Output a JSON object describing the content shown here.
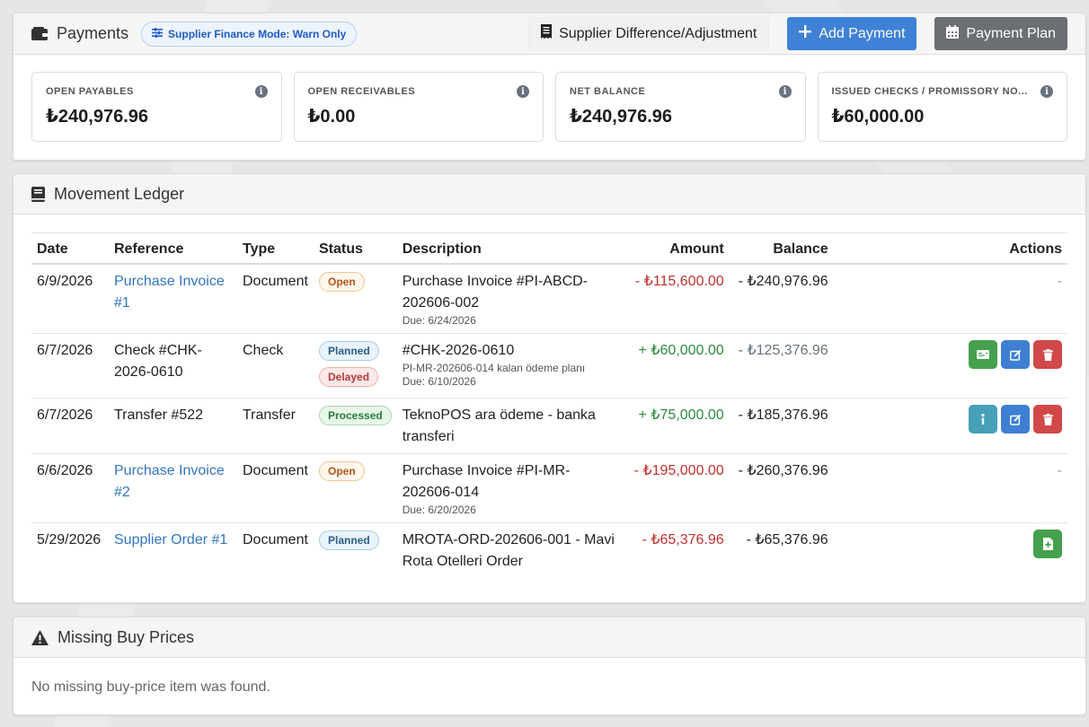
{
  "payments": {
    "title": "Payments",
    "mode_pill": "Supplier Finance Mode: Warn Only",
    "diff_button": "Supplier Difference/Adjustment",
    "add_button": "Add Payment",
    "plan_button": "Payment Plan",
    "stats": [
      {
        "label": "OPEN PAYABLES",
        "value": "₺240,976.96"
      },
      {
        "label": "OPEN RECEIVABLES",
        "value": "₺0.00"
      },
      {
        "label": "NET BALANCE",
        "value": "₺240,976.96"
      },
      {
        "label": "ISSUED CHECKS / PROMISSORY NO...",
        "value": "₺60,000.00"
      }
    ],
    "info_glyph": "i"
  },
  "ledger": {
    "title": "Movement Ledger",
    "columns": {
      "date": "Date",
      "reference": "Reference",
      "type": "Type",
      "status": "Status",
      "description": "Description",
      "amount": "Amount",
      "balance": "Balance",
      "actions": "Actions"
    },
    "rows": [
      {
        "date": "6/9/2026",
        "reference": "Purchase Invoice #1",
        "type": "Document",
        "status": "Open",
        "description": "Purchase Invoice #PI-ABCD-202606-002",
        "note": "",
        "due": "Due: 6/24/2026",
        "amount": "- ₺115,600.00",
        "balance": "- ₺240,976.96",
        "actions_text": "-"
      },
      {
        "date": "6/7/2026",
        "reference": "Check #CHK-2026-0610",
        "type": "Check",
        "status": "Planned",
        "status2": "Delayed",
        "description": "#CHK-2026-0610",
        "note": "PI-MR-202606-014 kalan ödeme planı",
        "due": "Due: 6/10/2026",
        "amount": "+ ₺60,000.00",
        "balance": "- ₺125,376.96"
      },
      {
        "date": "6/7/2026",
        "reference": "Transfer #522",
        "type": "Transfer",
        "status": "Processed",
        "description": "TeknoPOS ara ödeme - banka transferi",
        "amount": "+ ₺75,000.00",
        "balance": "- ₺185,376.96"
      },
      {
        "date": "6/6/2026",
        "reference": "Purchase Invoice #2",
        "type": "Document",
        "status": "Open",
        "description": "Purchase Invoice #PI-MR-202606-014",
        "due": "Due: 6/20/2026",
        "amount": "- ₺195,000.00",
        "balance": "- ₺260,376.96",
        "actions_text": "-"
      },
      {
        "date": "5/29/2026",
        "reference": "Supplier Order #1",
        "type": "Document",
        "status": "Planned",
        "description": "MROTA-ORD-202606-001 - Mavi Rota Otelleri Order",
        "amount": "- ₺65,376.96",
        "balance": "- ₺65,376.96"
      }
    ]
  },
  "missing": {
    "title": "Missing Buy Prices",
    "empty_text": "No missing buy-price item was found."
  },
  "icons": [
    "wallet-icon",
    "sliders-icon",
    "receipt-icon",
    "plus-icon",
    "calendar-icon",
    "book-icon",
    "info-icon",
    "payment-card-icon",
    "edit-icon",
    "trash-icon",
    "file-icon",
    "warning-icon"
  ],
  "colors": {
    "primary": "#3f81d6",
    "secondary": "#6b6e72",
    "negative": "#c0322f",
    "positive": "#2d8a3e",
    "link": "#3375c2"
  }
}
